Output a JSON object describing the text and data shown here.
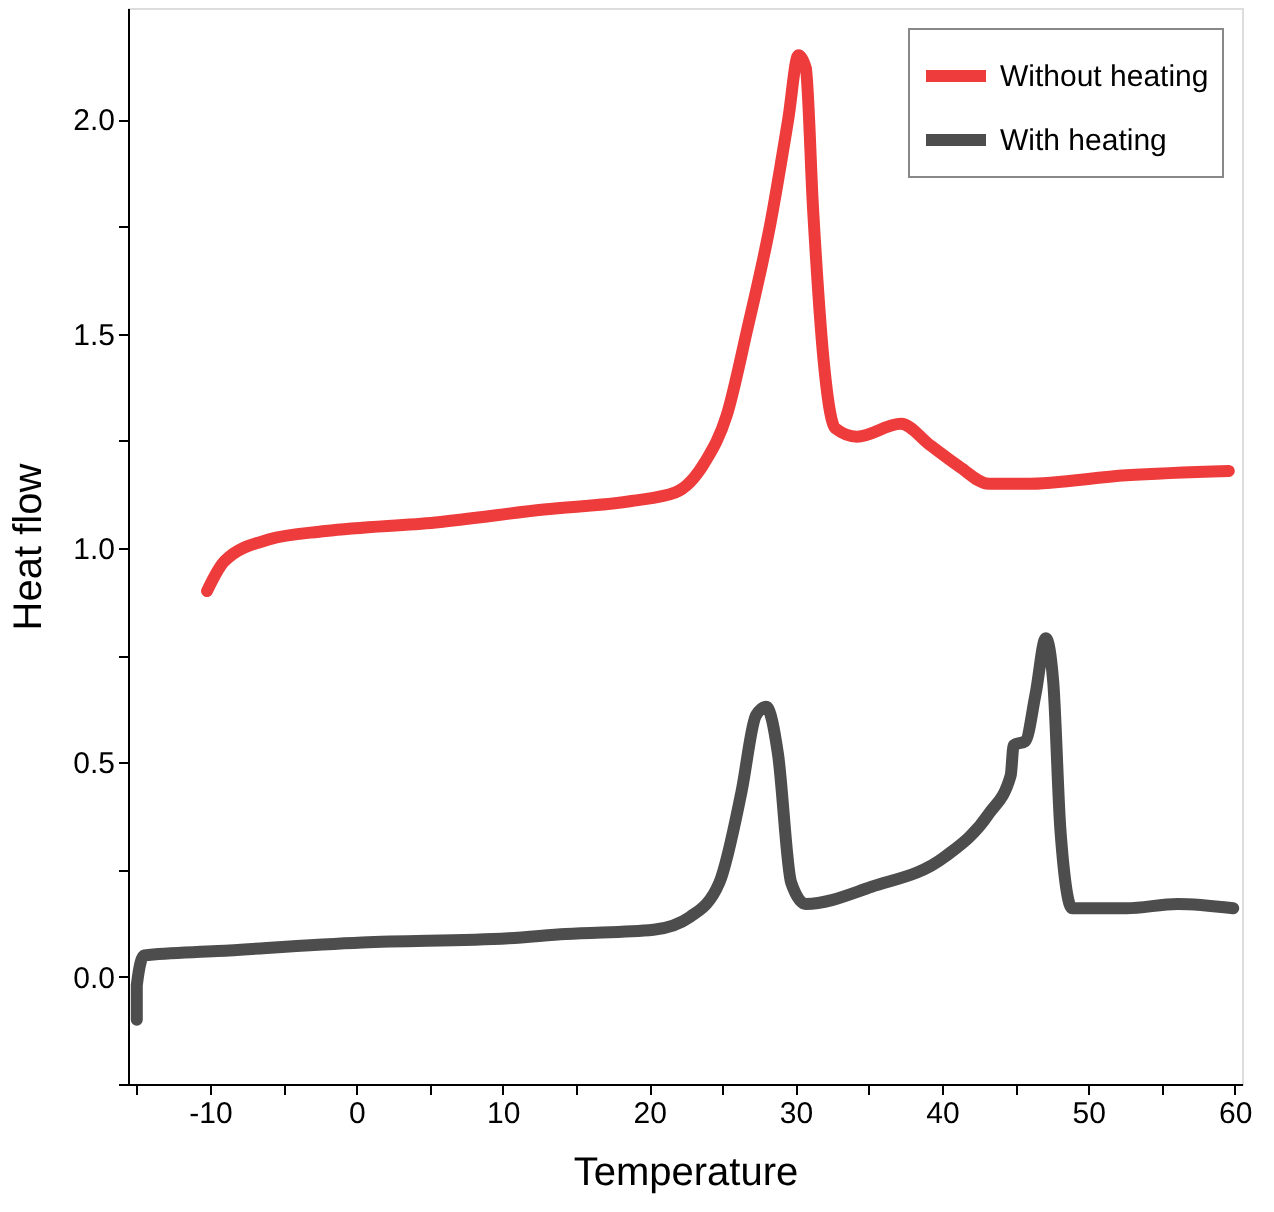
{
  "chart_data": {
    "type": "line",
    "xlabel": "Temperature",
    "ylabel": "Heat flow",
    "xlim": [
      -15.6,
      60.5
    ],
    "ylim": [
      -0.25,
      2.26
    ],
    "xticks": [
      {
        "value": -15,
        "label": null
      },
      -10,
      {
        "value": -5,
        "label": null
      },
      0,
      {
        "value": 5,
        "label": null
      },
      10,
      {
        "value": 15,
        "label": null
      },
      20,
      {
        "value": 25,
        "label": null
      },
      30,
      {
        "value": 35,
        "label": null
      },
      40,
      {
        "value": 45,
        "label": null
      },
      50,
      {
        "value": 55,
        "label": null
      },
      60
    ],
    "yticks": [
      {
        "value": -0.25,
        "label": null
      },
      {
        "value": 0,
        "label": "0.0"
      },
      {
        "value": 0.25,
        "label": null
      },
      {
        "value": 0.5,
        "label": "0.5"
      },
      {
        "value": 0.75,
        "label": null
      },
      {
        "value": 1,
        "label": "1.0"
      },
      {
        "value": 1.25,
        "label": null
      },
      {
        "value": 1.5,
        "label": "1.5"
      },
      {
        "value": 1.75,
        "label": null
      },
      {
        "value": 2,
        "label": "2.0"
      }
    ],
    "grid": false,
    "legend": "top right",
    "line_style": "solid",
    "marker": "none",
    "series": [
      {
        "name": "Without heating",
        "color": "#ee3b3b",
        "x": [
          -10.2,
          -9.0,
          -6.0,
          -2.1,
          5.4,
          12.8,
          18.8,
          21.8,
          23.8,
          25.3,
          26.7,
          28.3,
          29.5,
          30.2,
          30.7,
          31.2,
          32.0,
          32.7,
          34.2,
          37.2,
          39.2,
          41.2,
          43.2,
          45.7,
          52.6,
          59.6
        ],
        "values": [
          0.9,
          0.97,
          1.02,
          1.04,
          1.06,
          1.09,
          1.11,
          1.13,
          1.2,
          1.31,
          1.51,
          1.76,
          2.0,
          2.15,
          2.12,
          1.79,
          1.41,
          1.28,
          1.26,
          1.29,
          1.24,
          1.19,
          1.15,
          1.15,
          1.17,
          1.18
        ]
      },
      {
        "name": "With heating",
        "color": "#4d4d4d",
        "x": [
          -15.0,
          -15.0,
          -14.5,
          -9.5,
          0.4,
          10.4,
          14.3,
          20.3,
          22.8,
          24.8,
          26.3,
          27.3,
          28.0,
          28.8,
          29.7,
          30.7,
          35.2,
          40.2,
          43.2,
          44.7,
          44.9,
          45.7,
          46.4,
          47.1,
          47.6,
          48.1,
          48.9,
          52.6,
          56.1,
          59.9
        ],
        "values": [
          -0.1,
          -0.02,
          0.05,
          0.06,
          0.08,
          0.09,
          0.1,
          0.11,
          0.14,
          0.22,
          0.43,
          0.61,
          0.63,
          0.52,
          0.22,
          0.17,
          0.21,
          0.28,
          0.38,
          0.47,
          0.54,
          0.55,
          0.66,
          0.79,
          0.69,
          0.34,
          0.16,
          0.16,
          0.17,
          0.16
        ]
      }
    ]
  }
}
